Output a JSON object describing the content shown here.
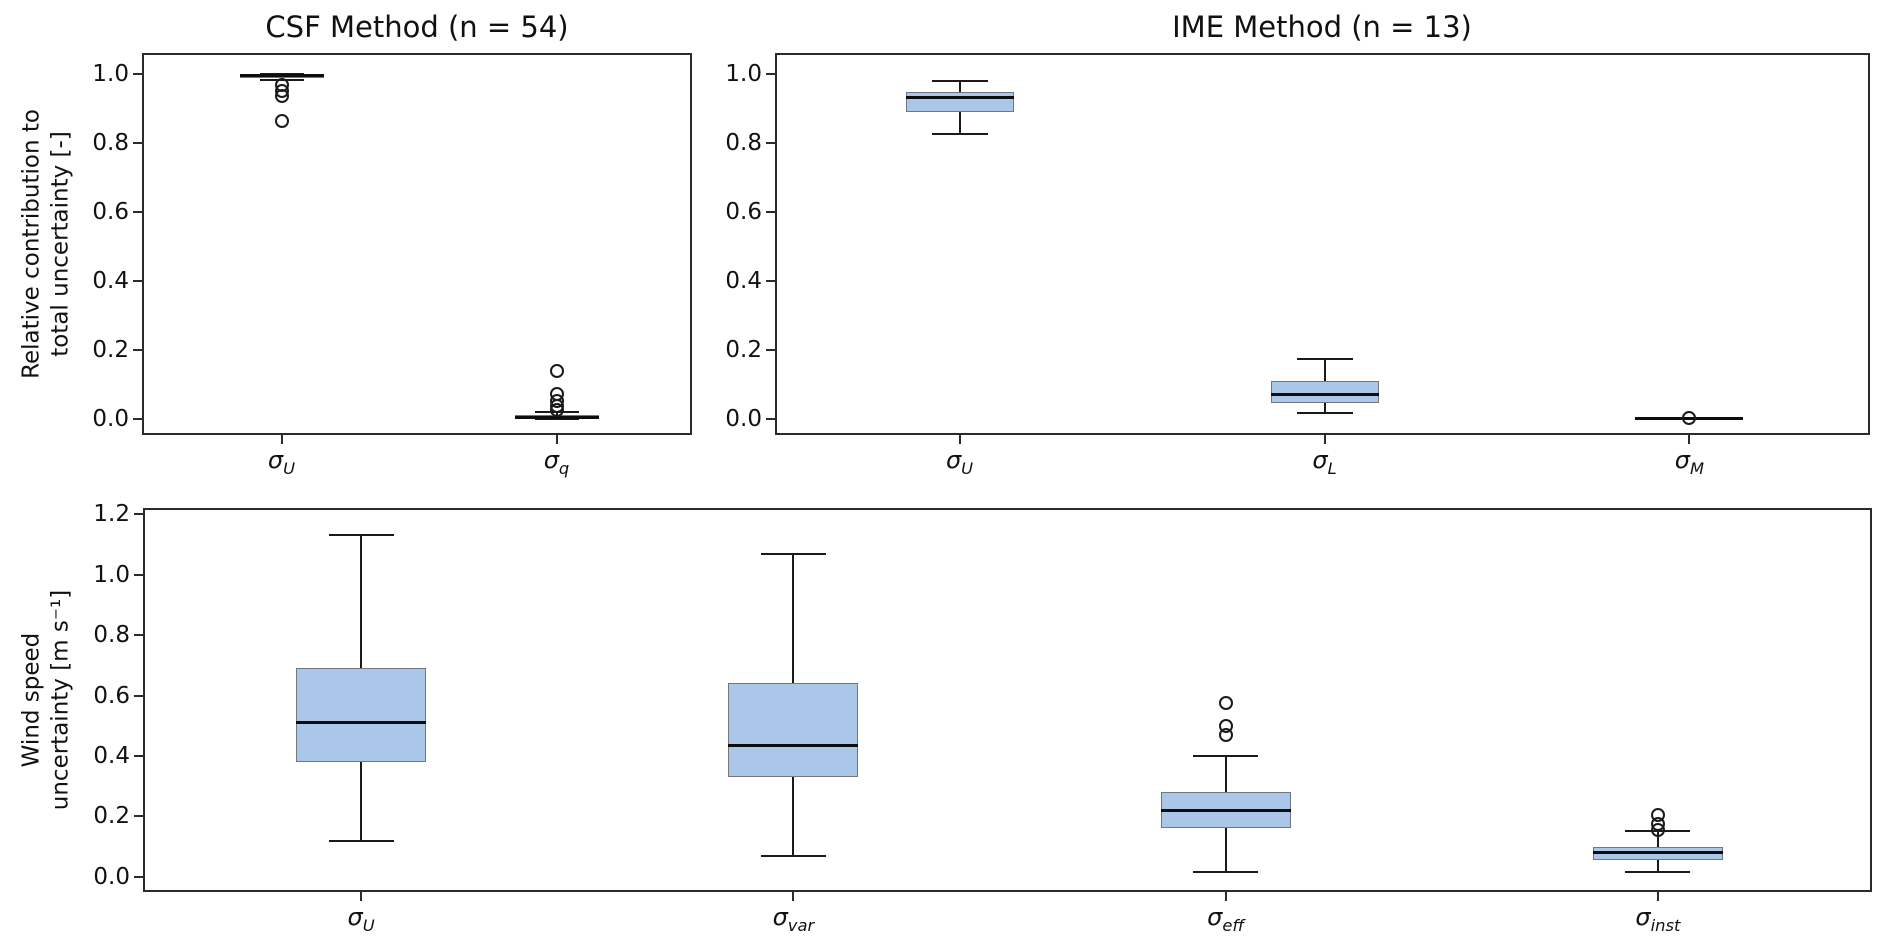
{
  "figure": {
    "background": "#ffffff",
    "box_fill_color": "#aac6e8",
    "box_edge_color": "#73767c",
    "line_color": "#1a1a1a",
    "spine_color": "#2b2b2b"
  },
  "chart_data": [
    {
      "type": "box",
      "title": "CSF Method (n = 54)",
      "ylabel": "Relative contribution to\ntotal uncertainty [-]",
      "xlabel": "",
      "ylim": [
        -0.052,
        1.056
      ],
      "yticks": [
        0.0,
        0.2,
        0.4,
        0.6,
        0.8,
        1.0
      ],
      "grid": false,
      "legend": null,
      "categories": [
        {
          "symbol": "σ",
          "sub": "U"
        },
        {
          "symbol": "σ",
          "sub": "q"
        }
      ],
      "boxes": [
        {
          "whislo": 0.983,
          "q1": 0.988,
          "med": 0.996,
          "q3": 1.0,
          "whishi": 1.0,
          "fliers": [
            0.97,
            0.951,
            0.938,
            0.866
          ]
        },
        {
          "whislo": 0.0,
          "q1": 0.002,
          "med": 0.005,
          "q3": 0.012,
          "whishi": 0.02,
          "fliers": [
            0.14,
            0.073,
            0.052,
            0.038,
            0.026
          ]
        }
      ]
    },
    {
      "type": "box",
      "title": "IME Method (n = 13)",
      "ylabel": null,
      "xlabel": "",
      "ylim": [
        -0.052,
        1.056
      ],
      "yticks": [
        0.0,
        0.2,
        0.4,
        0.6,
        0.8,
        1.0
      ],
      "grid": false,
      "legend": null,
      "categories": [
        {
          "symbol": "σ",
          "sub": "U"
        },
        {
          "symbol": "σ",
          "sub": "L"
        },
        {
          "symbol": "σ",
          "sub": "M"
        }
      ],
      "boxes": [
        {
          "whislo": 0.828,
          "q1": 0.89,
          "med": 0.932,
          "q3": 0.948,
          "whishi": 0.98,
          "fliers": []
        },
        {
          "whislo": 0.017,
          "q1": 0.046,
          "med": 0.072,
          "q3": 0.11,
          "whishi": 0.175,
          "fliers": []
        },
        {
          "whislo": 0.0,
          "q1": 0.0,
          "med": 0.001,
          "q3": 0.002,
          "whishi": 0.003,
          "fliers": [
            0.002
          ]
        }
      ]
    },
    {
      "type": "box",
      "title": null,
      "ylabel": "Wind speed\nuncertainty [m s⁻¹]",
      "xlabel": "",
      "ylim": [
        -0.057,
        1.214
      ],
      "yticks": [
        0.0,
        0.2,
        0.4,
        0.6,
        0.8,
        1.0,
        1.2
      ],
      "grid": false,
      "legend": null,
      "categories": [
        {
          "symbol": "σ",
          "sub": "U"
        },
        {
          "symbol": "σ",
          "sub": "var"
        },
        {
          "symbol": "σ",
          "sub": "eff"
        },
        {
          "symbol": "σ",
          "sub": "inst"
        }
      ],
      "boxes": [
        {
          "whislo": 0.12,
          "q1": 0.38,
          "med": 0.51,
          "q3": 0.69,
          "whishi": 1.13,
          "fliers": []
        },
        {
          "whislo": 0.07,
          "q1": 0.33,
          "med": 0.435,
          "q3": 0.64,
          "whishi": 1.07,
          "fliers": []
        },
        {
          "whislo": 0.015,
          "q1": 0.16,
          "med": 0.22,
          "q3": 0.28,
          "whishi": 0.4,
          "fliers": [
            0.575,
            0.5,
            0.47
          ]
        },
        {
          "whislo": 0.015,
          "q1": 0.055,
          "med": 0.08,
          "q3": 0.1,
          "whishi": 0.15,
          "fliers": [
            0.205,
            0.175,
            0.155
          ]
        }
      ]
    }
  ]
}
